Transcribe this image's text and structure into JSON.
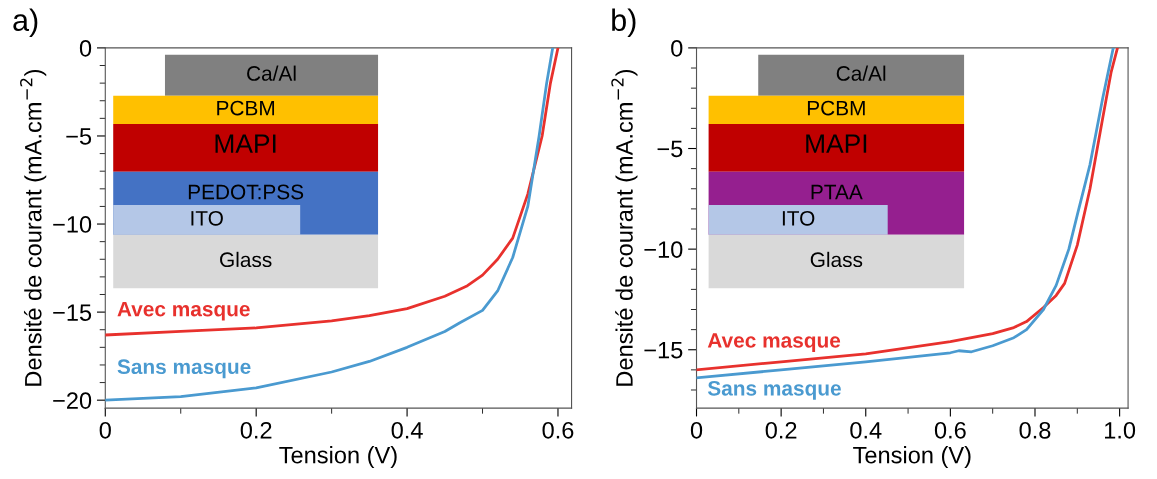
{
  "chart_data": [
    {
      "type": "line",
      "title": "a)",
      "xlabel": "Tension (V)",
      "ylabel": "Densité de courant (mA.cm$^{−2}$)",
      "xlim": [
        0,
        0.618
      ],
      "ylim": [
        -20.45,
        0
      ],
      "xticks": [
        0,
        0.2,
        0.4,
        0.6
      ],
      "yticks": [
        {
          "value": -20,
          "label": "−20"
        },
        {
          "value": -15,
          "label": "−15"
        },
        {
          "value": -10,
          "label": "−10"
        },
        {
          "value": -5,
          "label": "−5"
        },
        0
      ],
      "grid": false,
      "legend": false,
      "marker": "none",
      "line_style": "solid",
      "annotations": [
        "Ca/Al",
        "PCBM",
        "MAPI",
        "PEDOT:PSS",
        "ITO",
        "Glass"
      ],
      "series": [
        {
          "name": "Avec masque",
          "color": "#e8312d",
          "x": [
            0,
            0.1,
            0.2,
            0.3,
            0.35,
            0.4,
            0.45,
            0.48,
            0.5,
            0.52,
            0.54,
            0.56,
            0.579,
            0.59,
            0.6
          ],
          "values": [
            -16.3,
            -16.1,
            -15.9,
            -15.5,
            -15.2,
            -14.8,
            -14.1,
            -13.5,
            -12.9,
            -12.0,
            -10.8,
            -8.3,
            -5,
            -2,
            0
          ]
        },
        {
          "name": "Sans masque",
          "color": "#4a9ad0",
          "x": [
            0,
            0.1,
            0.2,
            0.3,
            0.35,
            0.4,
            0.45,
            0.47,
            0.5,
            0.52,
            0.54,
            0.56,
            0.575,
            0.585,
            0.593
          ],
          "values": [
            -20,
            -19.8,
            -19.3,
            -18.4,
            -17.8,
            -17.0,
            -16.1,
            -15.6,
            -14.9,
            -13.8,
            -11.9,
            -9,
            -5,
            -2,
            0
          ]
        }
      ]
    },
    {
      "type": "line",
      "title": "b)",
      "xlabel": "Tension (V)",
      "ylabel": "Densité de courant (mA.cm$^{−2}$)",
      "xlim": [
        0,
        1.02
      ],
      "ylim": [
        -17.9,
        0
      ],
      "xticks": [
        0,
        0.2,
        0.4,
        0.6,
        0.8,
        {
          "value": 1.0,
          "label": "1.0"
        }
      ],
      "yticks": [
        {
          "value": -15,
          "label": "−15"
        },
        {
          "value": -10,
          "label": "−10"
        },
        {
          "value": -5,
          "label": "−5"
        },
        0
      ],
      "grid": false,
      "legend": false,
      "marker": "none",
      "line_style": "solid",
      "annotations": [
        "Ca/Al",
        "PCBM",
        "MAPI",
        "PTAA",
        "ITO",
        "Glass"
      ],
      "series": [
        {
          "name": "Avec masque",
          "color": "#e8312d",
          "x": [
            0,
            0.2,
            0.4,
            0.6,
            0.7,
            0.75,
            0.78,
            0.82,
            0.85,
            0.87,
            0.9,
            0.93,
            0.96,
            0.98,
            0.995
          ],
          "values": [
            -16.0,
            -15.6,
            -15.2,
            -14.6,
            -14.2,
            -13.9,
            -13.6,
            -12.9,
            -12.3,
            -11.7,
            -9.8,
            -7,
            -3.5,
            -1.2,
            0
          ]
        },
        {
          "name": "Sans masque",
          "color": "#4a9ad0",
          "x": [
            0,
            0.2,
            0.4,
            0.6,
            0.62,
            0.65,
            0.7,
            0.75,
            0.78,
            0.82,
            0.85,
            0.88,
            0.9,
            0.93,
            0.96,
            0.985
          ],
          "values": [
            -16.4,
            -16.0,
            -15.6,
            -15.15,
            -15.05,
            -15.1,
            -14.8,
            -14.4,
            -14.0,
            -13.0,
            -11.8,
            -10,
            -8.3,
            -5.8,
            -2.5,
            0
          ]
        }
      ]
    }
  ]
}
